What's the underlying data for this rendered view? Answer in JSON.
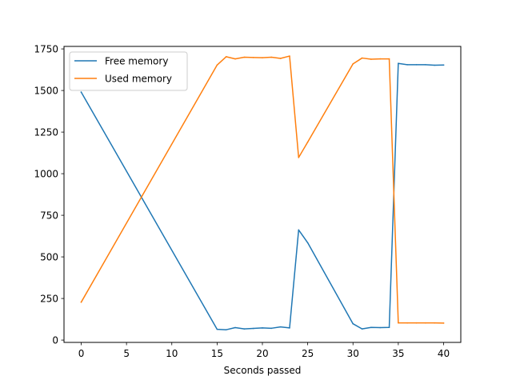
{
  "chart_data": {
    "type": "line",
    "title": "",
    "xlabel": "Seconds passed",
    "ylabel": "",
    "xlim": [
      -1.9,
      41.9
    ],
    "ylim": [
      -14,
      1765
    ],
    "xticks": [
      0,
      5,
      10,
      15,
      20,
      25,
      30,
      35,
      40
    ],
    "yticks": [
      0,
      250,
      500,
      750,
      1000,
      1250,
      1500,
      1750
    ],
    "grid": false,
    "legend_position": "top-left",
    "x": [
      0,
      15,
      16,
      17,
      18,
      19,
      20,
      21,
      22,
      23,
      24,
      25,
      30,
      31,
      32,
      33,
      34,
      35,
      36,
      37,
      38,
      39,
      40
    ],
    "series": [
      {
        "name": "Free memory",
        "color": "#1f77b4",
        "values": [
          1490,
          65,
          62,
          75,
          67,
          70,
          73,
          71,
          79,
          73,
          662,
          585,
          98,
          67,
          76,
          75,
          76,
          1663,
          1655,
          1655,
          1655,
          1652,
          1653
        ]
      },
      {
        "name": "Used memory",
        "color": "#ff7f0e",
        "values": [
          228,
          1653,
          1703,
          1690,
          1700,
          1698,
          1697,
          1700,
          1693,
          1707,
          1097,
          1190,
          1660,
          1695,
          1688,
          1690,
          1690,
          103,
          103,
          103,
          103,
          103,
          102
        ]
      }
    ]
  }
}
